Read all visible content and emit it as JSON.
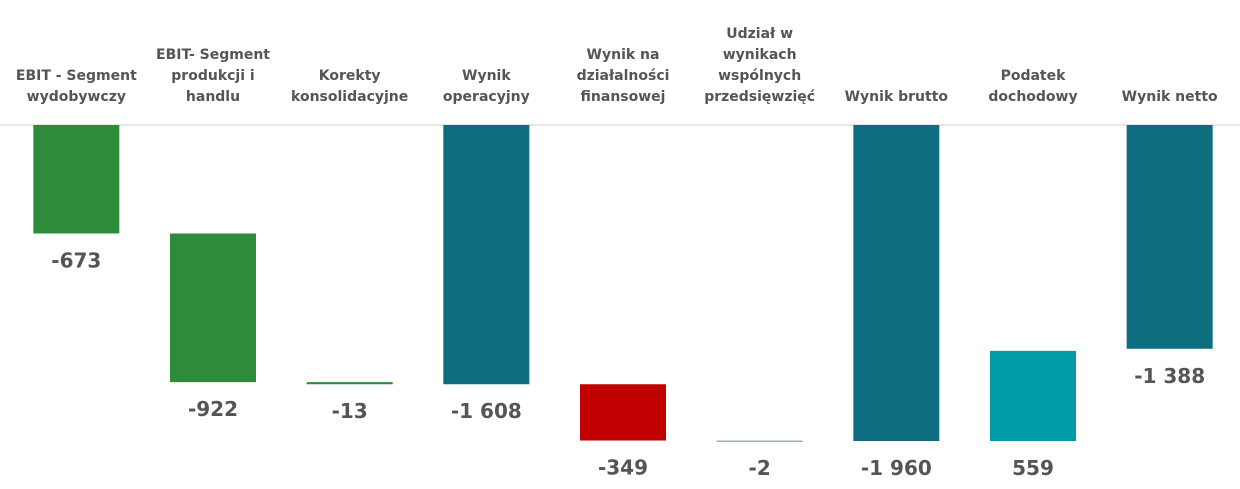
{
  "chart_data": {
    "type": "waterfall",
    "categories": [
      "EBIT - Segment wydobywczy",
      "EBIT- Segment produkcji i handlu",
      "Korekty konsolidacyjne",
      "Wynik operacyjny",
      "Wynik na działalności finansowej",
      "Udział w wynikach wspólnych przedsięwzięć",
      "Wynik brutto",
      "Podatek dochodowy",
      "Wynik netto"
    ],
    "values": [
      -673,
      -922,
      -13,
      -1608,
      -349,
      -2,
      -1960,
      559,
      -1388
    ],
    "value_labels": [
      "-673",
      "-922",
      "-13",
      "-1 608",
      "-349",
      "-2",
      "-1 960",
      "559",
      "-1 388"
    ],
    "measure": [
      "relative",
      "relative",
      "relative",
      "total",
      "relative",
      "relative",
      "total",
      "relative",
      "total"
    ],
    "colors": [
      "#2e8b3c",
      "#2e8b3c",
      "#2e8b3c",
      "#0e6e80",
      "#c00000",
      "#8fb8a0",
      "#0e6e80",
      "#009ca8",
      "#0e6e80"
    ]
  }
}
